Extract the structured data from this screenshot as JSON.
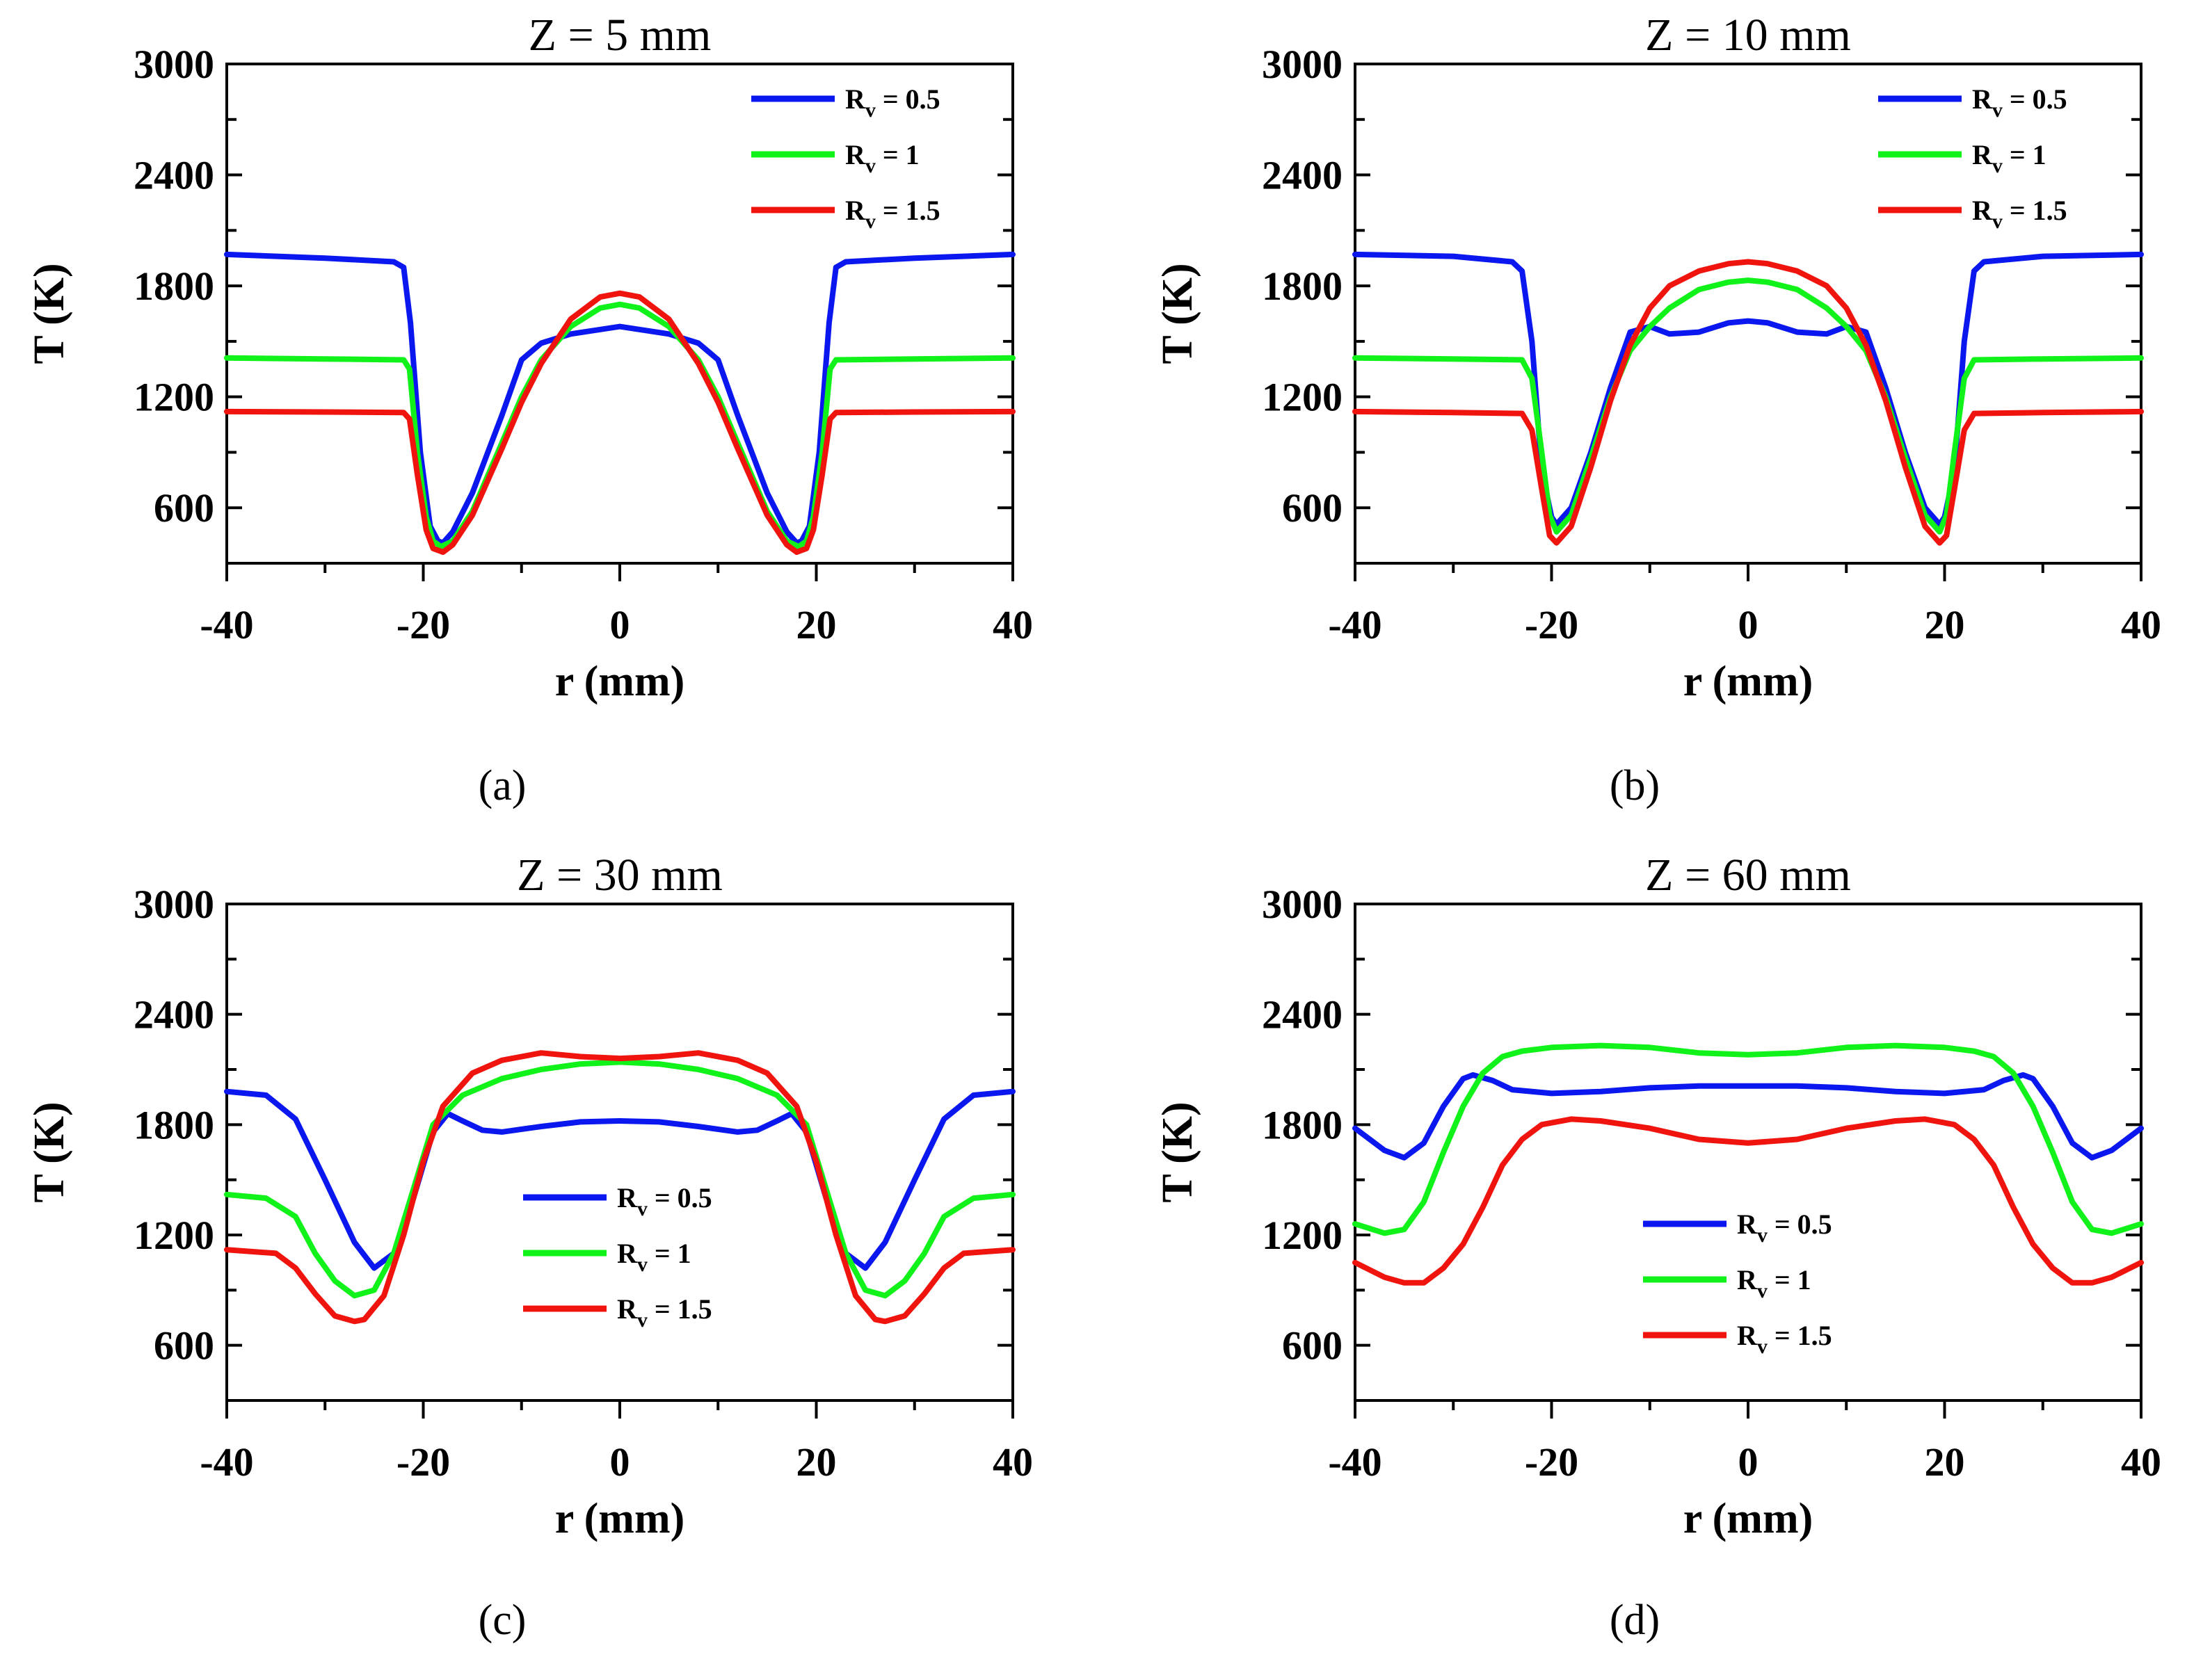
{
  "colors": {
    "Rv_0_5": "#0a17ee",
    "Rv_1": "#11f21a",
    "Rv_1_5": "#f0140f"
  },
  "chart_data": [
    {
      "type": "line",
      "panel": "(a)",
      "title": "Z = 5 mm",
      "xlabel": "r (mm)",
      "ylabel": "T (K)",
      "xlim": [
        -40,
        40
      ],
      "ylim": [
        300,
        3000
      ],
      "xticks": [
        "-40",
        "-20",
        "0",
        "20",
        "40"
      ],
      "yticks": [
        "600",
        "1200",
        "1800",
        "2400",
        "3000"
      ],
      "legend_position": "top-right",
      "series": [
        {
          "name_base": "R",
          "name_sub": "v",
          "name_rest": " = 0.5",
          "color": "#0a17ee",
          "x": [
            -40,
            -30,
            -23,
            -22,
            -21.3,
            -20.3,
            -19.3,
            -18.5,
            -18,
            -17,
            -15,
            -12,
            -10,
            -8,
            -5,
            0,
            5,
            8,
            10,
            12,
            15,
            17,
            18,
            18.5,
            19.3,
            20.3,
            21.3,
            22,
            23,
            30,
            40
          ],
          "y": [
            1970,
            1950,
            1930,
            1900,
            1600,
            900,
            500,
            420,
            410,
            470,
            680,
            1100,
            1400,
            1490,
            1540,
            1580,
            1540,
            1490,
            1400,
            1100,
            680,
            470,
            410,
            420,
            500,
            900,
            1600,
            1900,
            1930,
            1950,
            1970
          ]
        },
        {
          "name_base": "R",
          "name_sub": "v",
          "name_rest": " = 1",
          "color": "#11f21a",
          "x": [
            -40,
            -30,
            -22,
            -21.4,
            -20.6,
            -19.7,
            -19,
            -18.2,
            -17,
            -15,
            -12,
            -10,
            -8,
            -5,
            -2,
            0,
            2,
            5,
            8,
            10,
            12,
            15,
            17,
            18.2,
            19,
            19.7,
            20.6,
            21.4,
            22,
            30,
            40
          ],
          "y": [
            1410,
            1405,
            1400,
            1350,
            900,
            550,
            420,
            390,
            420,
            580,
            950,
            1200,
            1400,
            1580,
            1680,
            1700,
            1680,
            1580,
            1400,
            1200,
            950,
            580,
            420,
            390,
            420,
            550,
            900,
            1350,
            1400,
            1405,
            1410
          ]
        },
        {
          "name_base": "R",
          "name_sub": "v",
          "name_rest": " = 1.5",
          "color": "#f0140f",
          "x": [
            -40,
            -30,
            -22,
            -21.4,
            -20.6,
            -19.7,
            -19,
            -18,
            -17,
            -15,
            -12,
            -10,
            -8,
            -5,
            -2,
            0,
            2,
            5,
            8,
            10,
            12,
            15,
            17,
            18,
            19,
            19.7,
            20.6,
            21.4,
            22,
            30,
            40
          ],
          "y": [
            1120,
            1118,
            1115,
            1080,
            780,
            480,
            380,
            360,
            400,
            560,
            920,
            1170,
            1380,
            1620,
            1740,
            1760,
            1740,
            1620,
            1380,
            1170,
            920,
            560,
            400,
            360,
            380,
            480,
            780,
            1080,
            1115,
            1118,
            1120
          ]
        }
      ]
    },
    {
      "type": "line",
      "panel": "(b)",
      "title": "Z = 10 mm",
      "xlabel": "r (mm)",
      "ylabel": "T (K)",
      "xlim": [
        -40,
        40
      ],
      "ylim": [
        300,
        3000
      ],
      "xticks": [
        "-40",
        "-20",
        "0",
        "20",
        "40"
      ],
      "yticks": [
        "600",
        "1200",
        "1800",
        "2400",
        "3000"
      ],
      "legend_position": "top-right",
      "series": [
        {
          "name_base": "R",
          "name_sub": "v",
          "name_rest": " = 0.5",
          "color": "#0a17ee",
          "x": [
            -40,
            -30,
            -24,
            -23,
            -22,
            -21,
            -20,
            -19.5,
            -18,
            -16,
            -14,
            -12,
            -10,
            -8,
            -5,
            -2,
            0,
            2,
            5,
            8,
            10,
            12,
            14,
            16,
            18,
            19.5,
            20,
            21,
            22,
            23,
            24,
            30,
            40
          ],
          "y": [
            1970,
            1960,
            1930,
            1880,
            1500,
            800,
            550,
            510,
            600,
            900,
            1250,
            1550,
            1580,
            1540,
            1550,
            1600,
            1610,
            1600,
            1550,
            1540,
            1580,
            1550,
            1250,
            900,
            600,
            510,
            550,
            800,
            1500,
            1880,
            1930,
            1960,
            1970
          ]
        },
        {
          "name_base": "R",
          "name_sub": "v",
          "name_rest": " = 1",
          "color": "#11f21a",
          "x": [
            -40,
            -30,
            -23,
            -22,
            -21,
            -20.2,
            -19.5,
            -18,
            -16,
            -14,
            -12,
            -10,
            -8,
            -5,
            -2,
            0,
            2,
            5,
            8,
            10,
            12,
            14,
            16,
            18,
            19.5,
            20.2,
            21,
            22,
            23,
            30,
            40
          ],
          "y": [
            1410,
            1405,
            1400,
            1300,
            900,
            560,
            470,
            560,
            870,
            1200,
            1450,
            1580,
            1680,
            1780,
            1820,
            1830,
            1820,
            1780,
            1680,
            1580,
            1450,
            1200,
            870,
            560,
            470,
            560,
            900,
            1300,
            1400,
            1405,
            1410
          ]
        },
        {
          "name_base": "R",
          "name_sub": "v",
          "name_rest": " = 1.5",
          "color": "#f0140f",
          "x": [
            -40,
            -30,
            -23,
            -22,
            -21,
            -20.2,
            -19.5,
            -18,
            -16,
            -14,
            -12,
            -10,
            -8,
            -5,
            -2,
            0,
            2,
            5,
            8,
            10,
            12,
            14,
            16,
            18,
            19.5,
            20.2,
            21,
            22,
            23,
            30,
            40
          ],
          "y": [
            1120,
            1115,
            1110,
            1020,
            700,
            450,
            410,
            500,
            820,
            1180,
            1480,
            1680,
            1800,
            1880,
            1920,
            1930,
            1920,
            1880,
            1800,
            1680,
            1480,
            1180,
            820,
            500,
            410,
            450,
            700,
            1020,
            1110,
            1115,
            1120
          ]
        }
      ]
    },
    {
      "type": "line",
      "panel": "(c)",
      "title": "Z = 30 mm",
      "xlabel": "r (mm)",
      "ylabel": "T (K)",
      "xlim": [
        -40,
        40
      ],
      "ylim": [
        300,
        3000
      ],
      "xticks": [
        "-40",
        "-20",
        "0",
        "20",
        "40"
      ],
      "yticks": [
        "600",
        "1200",
        "1800",
        "2400",
        "3000"
      ],
      "legend_position": "center",
      "series": [
        {
          "name_base": "R",
          "name_sub": "v",
          "name_rest": " = 0.5",
          "color": "#0a17ee",
          "x": [
            -40,
            -36,
            -33,
            -30,
            -27,
            -25,
            -23,
            -21,
            -19,
            -17.5,
            -16,
            -14,
            -12,
            -8,
            -4,
            0,
            4,
            8,
            12,
            14,
            16,
            17.5,
            19,
            21,
            23,
            25,
            27,
            30,
            33,
            36,
            40
          ],
          "y": [
            1980,
            1960,
            1830,
            1500,
            1160,
            1020,
            1100,
            1400,
            1760,
            1860,
            1820,
            1770,
            1760,
            1790,
            1815,
            1820,
            1815,
            1790,
            1760,
            1770,
            1820,
            1860,
            1760,
            1400,
            1100,
            1020,
            1160,
            1500,
            1830,
            1960,
            1980
          ]
        },
        {
          "name_base": "R",
          "name_sub": "v",
          "name_rest": " = 1",
          "color": "#11f21a",
          "x": [
            -40,
            -36,
            -33,
            -31,
            -29,
            -27,
            -25,
            -23,
            -21,
            -19,
            -16,
            -12,
            -8,
            -4,
            0,
            4,
            8,
            12,
            16,
            19,
            21,
            23,
            25,
            27,
            29,
            31,
            33,
            36,
            40
          ],
          "y": [
            1420,
            1400,
            1300,
            1100,
            950,
            870,
            900,
            1100,
            1450,
            1800,
            1960,
            2050,
            2100,
            2130,
            2140,
            2130,
            2100,
            2050,
            1960,
            1800,
            1450,
            1100,
            900,
            870,
            950,
            1100,
            1300,
            1400,
            1420
          ]
        },
        {
          "name_base": "R",
          "name_sub": "v",
          "name_rest": " = 1.5",
          "color": "#f0140f",
          "x": [
            -40,
            -35,
            -33,
            -31,
            -29,
            -27,
            -26,
            -24,
            -22,
            -20,
            -18,
            -15,
            -12,
            -8,
            -4,
            0,
            4,
            8,
            12,
            15,
            18,
            20,
            22,
            24,
            26,
            27,
            29,
            31,
            33,
            35,
            40
          ],
          "y": [
            1120,
            1100,
            1020,
            880,
            760,
            730,
            740,
            870,
            1200,
            1600,
            1900,
            2080,
            2150,
            2190,
            2170,
            2160,
            2170,
            2190,
            2150,
            2080,
            1900,
            1600,
            1200,
            870,
            740,
            730,
            760,
            880,
            1020,
            1100,
            1120
          ]
        }
      ]
    },
    {
      "type": "line",
      "panel": "(d)",
      "title": "Z = 60 mm",
      "xlabel": "r (mm)",
      "ylabel": "T (K)",
      "xlim": [
        -40,
        40
      ],
      "ylim": [
        300,
        3000
      ],
      "xticks": [
        "-40",
        "-20",
        "0",
        "20",
        "40"
      ],
      "yticks": [
        "600",
        "1200",
        "1800",
        "2400",
        "3000"
      ],
      "legend_position": "bottom-center",
      "series": [
        {
          "name_base": "R",
          "name_sub": "v",
          "name_rest": " = 0.5",
          "color": "#0a17ee",
          "x": [
            -40,
            -37,
            -35,
            -33,
            -31,
            -29,
            -28,
            -26,
            -24,
            -20,
            -15,
            -10,
            -5,
            0,
            5,
            10,
            15,
            20,
            24,
            26,
            28,
            29,
            31,
            33,
            35,
            37,
            40
          ],
          "y": [
            1780,
            1660,
            1620,
            1700,
            1900,
            2050,
            2070,
            2040,
            1990,
            1970,
            1980,
            2000,
            2010,
            2010,
            2010,
            2000,
            1980,
            1970,
            1990,
            2040,
            2070,
            2050,
            1900,
            1700,
            1620,
            1660,
            1780
          ]
        },
        {
          "name_base": "R",
          "name_sub": "v",
          "name_rest": " = 1",
          "color": "#11f21a",
          "x": [
            -40,
            -37,
            -35,
            -33,
            -31,
            -29,
            -27,
            -25,
            -23,
            -20,
            -15,
            -10,
            -5,
            0,
            5,
            10,
            15,
            20,
            23,
            25,
            27,
            29,
            31,
            33,
            35,
            37,
            40
          ],
          "y": [
            1260,
            1210,
            1230,
            1380,
            1650,
            1900,
            2080,
            2170,
            2200,
            2220,
            2230,
            2220,
            2190,
            2180,
            2190,
            2220,
            2230,
            2220,
            2200,
            2170,
            2080,
            1900,
            1650,
            1380,
            1230,
            1210,
            1260
          ]
        },
        {
          "name_base": "R",
          "name_sub": "v",
          "name_rest": " = 1.5",
          "color": "#f0140f",
          "x": [
            -40,
            -37,
            -35,
            -33,
            -31,
            -29,
            -27,
            -25,
            -23,
            -21,
            -18,
            -15,
            -10,
            -5,
            0,
            5,
            10,
            15,
            18,
            21,
            23,
            25,
            27,
            29,
            31,
            33,
            35,
            37,
            40
          ],
          "y": [
            1050,
            970,
            940,
            940,
            1020,
            1150,
            1350,
            1580,
            1720,
            1800,
            1830,
            1820,
            1780,
            1720,
            1700,
            1720,
            1780,
            1820,
            1830,
            1800,
            1720,
            1580,
            1350,
            1150,
            1020,
            940,
            940,
            970,
            1050
          ]
        }
      ]
    }
  ]
}
